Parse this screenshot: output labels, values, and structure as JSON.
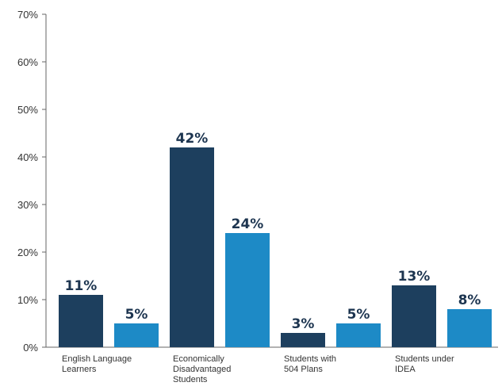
{
  "chart_data": {
    "type": "bar",
    "categories": [
      [
        "English Language",
        "Learners"
      ],
      [
        "Economically",
        "Disadvantaged",
        "Students"
      ],
      [
        "Students with",
        "504 Plans"
      ],
      [
        "Students under",
        "IDEA"
      ]
    ],
    "series": [
      {
        "values": [
          11,
          42,
          3,
          13
        ],
        "color": "#1d3f5e"
      },
      {
        "values": [
          5,
          24,
          5,
          8
        ],
        "color": "#1d8ac6"
      }
    ],
    "value_labels": [
      [
        "11%",
        "42%",
        "3%",
        "13%"
      ],
      [
        "5%",
        "24%",
        "5%",
        "8%"
      ]
    ],
    "y_ticks": [
      "0%",
      "10%",
      "20%",
      "30%",
      "40%",
      "50%",
      "60%",
      "70%"
    ],
    "ylim": [
      0,
      70
    ],
    "grid": false,
    "legend": "none"
  }
}
